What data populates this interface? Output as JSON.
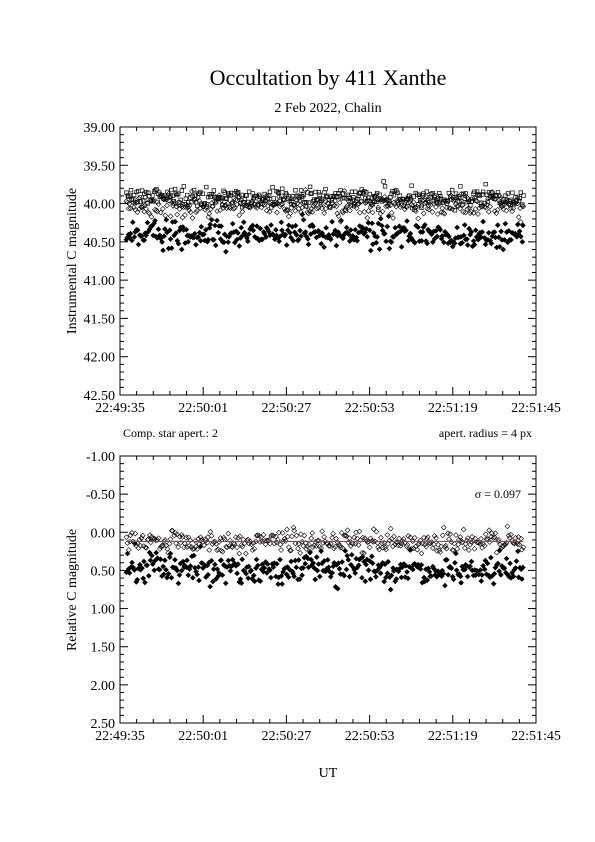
{
  "page": {
    "title": "Occultation by 411 Xanthe",
    "subtitle": "2 Feb 2022, Chalin",
    "comp_star_note": "Comp. star apert.: 2",
    "aperture_note": "apert. radius = 4 px",
    "sigma_note": "σ = 0.097",
    "xlabel": "UT"
  },
  "chart_data": [
    {
      "type": "scatter",
      "title": "Occultation by 411 Xanthe",
      "subtitle": "2 Feb 2022, Chalin",
      "xlabel": "",
      "ylabel": "Instrumental C magnitude",
      "x_range": [
        "22:49:35",
        "22:51:45"
      ],
      "x_ticks": [
        "22:49:35",
        "22:50:01",
        "22:50:27",
        "22:50:53",
        "22:51:19",
        "22:51:45"
      ],
      "ylim": [
        39.0,
        42.5
      ],
      "y_inverted": true,
      "y_ticks": [
        "39.00",
        "39.50",
        "40.00",
        "40.50",
        "41.00",
        "41.50",
        "42.00",
        "42.50"
      ],
      "x_start": "22:49:37",
      "x_end": "22:51:41",
      "n_points_per_series": 360,
      "series": [
        {
          "marker": "open-square",
          "mean": 39.92,
          "scatter": 0.06
        },
        {
          "marker": "open-diamond",
          "mean": 40.02,
          "scatter": 0.07
        },
        {
          "marker": "filled-diamond",
          "mean": 40.4,
          "scatter": 0.09
        }
      ]
    },
    {
      "type": "scatter",
      "xlabel": "UT",
      "ylabel": "Relative C magnitude",
      "x_range": [
        "22:49:35",
        "22:51:45"
      ],
      "x_ticks": [
        "22:49:35",
        "22:50:01",
        "22:50:27",
        "22:50:53",
        "22:51:19",
        "22:51:45"
      ],
      "ylim": [
        -1.0,
        2.5
      ],
      "y_inverted": true,
      "y_ticks": [
        "-1.00",
        "-0.50",
        "0.00",
        "0.50",
        "1.00",
        "1.50",
        "2.00",
        "2.50"
      ],
      "x_start": "22:49:37",
      "x_end": "22:51:41",
      "n_points_per_series": 360,
      "sigma": 0.097,
      "series": [
        {
          "marker": "open-diamond",
          "mean": 0.12,
          "scatter": 0.07
        },
        {
          "marker": "filled-diamond",
          "mean": 0.48,
          "scatter": 0.1
        }
      ],
      "fit_line": {
        "y": 0.12,
        "color": "#c0392b"
      }
    }
  ]
}
